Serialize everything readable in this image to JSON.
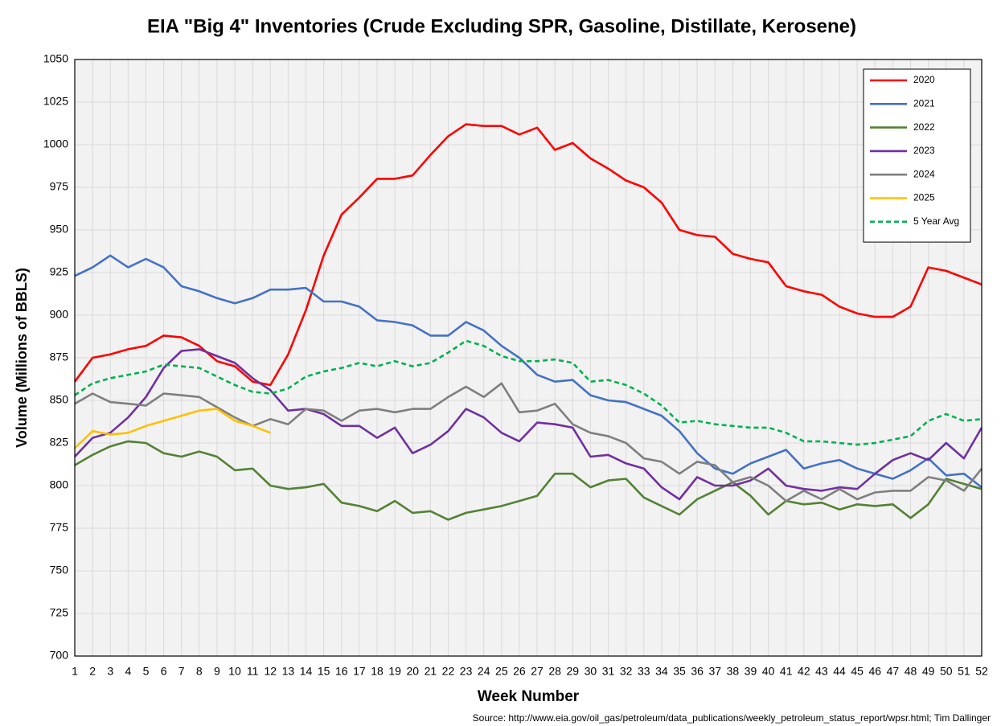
{
  "chart_data": {
    "type": "line",
    "title": "EIA \"Big 4\" Inventories (Crude Excluding SPR, Gasoline, Distillate, Kerosene)",
    "x_label": "Week Number",
    "y_label": "Volume (Millions of BBLS)",
    "source": "Source: http://www.eia.gov/oil_gas/petroleum/data_publications/weekly_petroleum_status_report/wpsr.html; Tim Dallinger",
    "x": [
      1,
      2,
      3,
      4,
      5,
      6,
      7,
      8,
      9,
      10,
      11,
      12,
      13,
      14,
      15,
      16,
      17,
      18,
      19,
      20,
      21,
      22,
      23,
      24,
      25,
      26,
      27,
      28,
      29,
      30,
      31,
      32,
      33,
      34,
      35,
      36,
      37,
      38,
      39,
      40,
      41,
      42,
      43,
      44,
      45,
      46,
      47,
      48,
      49,
      50,
      51,
      52
    ],
    "xlim": [
      1,
      52
    ],
    "xticks": [
      1,
      2,
      3,
      4,
      5,
      6,
      7,
      8,
      9,
      10,
      11,
      12,
      13,
      14,
      15,
      16,
      17,
      18,
      19,
      20,
      21,
      22,
      23,
      24,
      25,
      26,
      27,
      28,
      29,
      30,
      31,
      32,
      33,
      34,
      35,
      36,
      37,
      38,
      39,
      40,
      41,
      42,
      43,
      44,
      45,
      46,
      47,
      48,
      49,
      50,
      51,
      52
    ],
    "ylim": [
      700,
      1050
    ],
    "yticks": [
      700,
      725,
      750,
      775,
      800,
      825,
      850,
      875,
      900,
      925,
      950,
      975,
      1000,
      1025,
      1050
    ],
    "grid": true,
    "legend": "upper right",
    "series": [
      {
        "name": "2020",
        "color": "#ff0000",
        "values": [
          861,
          875,
          877,
          880,
          882,
          888,
          887,
          882,
          873,
          870,
          861,
          859,
          877,
          903,
          935,
          959,
          969,
          980,
          980,
          982,
          994,
          1005,
          1012,
          1011,
          1011,
          1006,
          1010,
          997,
          1001,
          992,
          986,
          979,
          975,
          966,
          950,
          947,
          946,
          936,
          933,
          931,
          917,
          914,
          912,
          905,
          901,
          899,
          899,
          905,
          928,
          926,
          922,
          918
        ]
      },
      {
        "name": "2021",
        "color": "#4472c4",
        "values": [
          923,
          928,
          935,
          928,
          933,
          928,
          917,
          914,
          910,
          907,
          910,
          915,
          915,
          916,
          908,
          908,
          905,
          897,
          896,
          894,
          888,
          888,
          896,
          891,
          882,
          875,
          865,
          861,
          862,
          853,
          850,
          849,
          845,
          841,
          832,
          819,
          810,
          807,
          813,
          817,
          821,
          810,
          813,
          815,
          810,
          807,
          804,
          809,
          816,
          806,
          807,
          799
        ]
      },
      {
        "name": "2022",
        "color": "#548235",
        "values": [
          812,
          818,
          823,
          826,
          825,
          819,
          817,
          820,
          817,
          809,
          810,
          800,
          798,
          799,
          801,
          790,
          788,
          785,
          791,
          784,
          785,
          780,
          784,
          786,
          788,
          791,
          794,
          807,
          807,
          799,
          803,
          804,
          793,
          788,
          783,
          792,
          797,
          802,
          794,
          783,
          791,
          789,
          790,
          786,
          789,
          788,
          789,
          781,
          789,
          804,
          801,
          798
        ]
      },
      {
        "name": "2023",
        "color": "#7030a0",
        "values": [
          817,
          828,
          831,
          840,
          852,
          869,
          879,
          880,
          876,
          872,
          863,
          856,
          844,
          845,
          842,
          835,
          835,
          828,
          834,
          819,
          824,
          832,
          845,
          840,
          831,
          826,
          837,
          836,
          834,
          817,
          818,
          813,
          810,
          799,
          792,
          805,
          800,
          800,
          803,
          810,
          800,
          798,
          797,
          799,
          798,
          807,
          815,
          819,
          815,
          825,
          816,
          834
        ]
      },
      {
        "name": "2024",
        "color": "#7f7f7f",
        "values": [
          848,
          854,
          849,
          848,
          847,
          854,
          853,
          852,
          846,
          840,
          835,
          839,
          836,
          845,
          844,
          838,
          844,
          845,
          843,
          845,
          845,
          852,
          858,
          852,
          860,
          843,
          844,
          848,
          836,
          831,
          829,
          825,
          816,
          814,
          807,
          814,
          812,
          802,
          805,
          800,
          791,
          797,
          792,
          798,
          792,
          796,
          797,
          797,
          805,
          803,
          797,
          810
        ]
      },
      {
        "name": "2025",
        "color": "#ffc000",
        "values": [
          822,
          832,
          830,
          831,
          835,
          838,
          841,
          844,
          845,
          838,
          835,
          831,
          null,
          null,
          null,
          null,
          null,
          null,
          null,
          null,
          null,
          null,
          null,
          null,
          null,
          null,
          null,
          null,
          null,
          null,
          null,
          null,
          null,
          null,
          null,
          null,
          null,
          null,
          null,
          null,
          null,
          null,
          null,
          null,
          null,
          null,
          null,
          null,
          null,
          null,
          null,
          null
        ]
      },
      {
        "name": "5 Year Avg",
        "color": "#00b050",
        "dashed": true,
        "values": [
          853,
          860,
          863,
          865,
          867,
          871,
          870,
          869,
          864,
          859,
          855,
          854,
          857,
          864,
          867,
          869,
          872,
          870,
          873,
          870,
          872,
          878,
          885,
          882,
          876,
          873,
          873,
          874,
          872,
          861,
          862,
          859,
          854,
          847,
          837,
          838,
          836,
          835,
          834,
          834,
          831,
          826,
          826,
          825,
          824,
          825,
          827,
          829,
          838,
          842,
          838,
          839
        ]
      }
    ]
  }
}
